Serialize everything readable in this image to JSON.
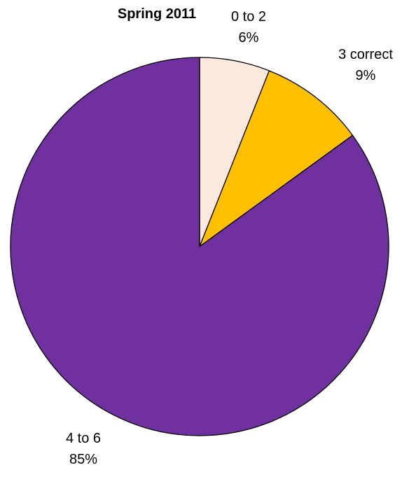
{
  "chart_data": {
    "type": "pie",
    "title": "Spring 2011",
    "slices": [
      {
        "label": "0 to 2",
        "value": 6,
        "value_label": "6%",
        "color": "#FBE9DD"
      },
      {
        "label": "3 correct",
        "value": 9,
        "value_label": "9%",
        "color": "#FFC000"
      },
      {
        "label": "4 to 6",
        "value": 85,
        "value_label": "85%",
        "color": "#7030A0"
      }
    ],
    "start_angle": "12 o'clock",
    "direction": "clockwise",
    "legend": "none",
    "slice_border_color": "#000000"
  }
}
